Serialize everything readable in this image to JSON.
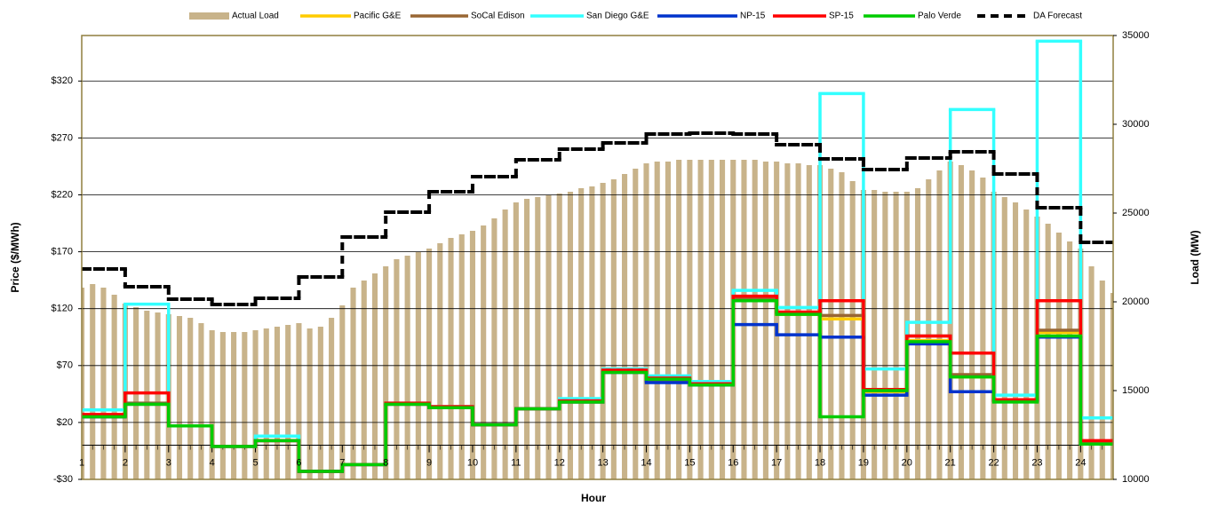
{
  "chart_data": {
    "type": "combo",
    "x_label": "Hour",
    "y_label": "Price ($/MWh)",
    "y2_label": "Load (MW)",
    "legend": "top",
    "grid": true,
    "xlim": [
      1,
      24.75
    ],
    "xticks": [
      1,
      2,
      3,
      4,
      5,
      6,
      7,
      8,
      9,
      10,
      11,
      12,
      13,
      14,
      15,
      16,
      17,
      18,
      19,
      20,
      21,
      22,
      23,
      24
    ],
    "ylim": [
      -30,
      360
    ],
    "yticks": [
      {
        "value": -30,
        "label": "-$30"
      },
      {
        "value": 20,
        "label": "$20"
      },
      {
        "value": 70,
        "label": "$70"
      },
      {
        "value": 120,
        "label": "$120"
      },
      {
        "value": 170,
        "label": "$170"
      },
      {
        "value": 220,
        "label": "$220"
      },
      {
        "value": 270,
        "label": "$270"
      },
      {
        "value": 320,
        "label": "$320"
      }
    ],
    "y2lim": [
      10000,
      35000
    ],
    "y2ticks": [
      10000,
      15000,
      20000,
      25000,
      30000,
      35000
    ],
    "x": [
      1,
      2,
      3,
      4,
      5,
      6,
      7,
      8,
      9,
      10,
      11,
      12,
      13,
      14,
      15,
      16,
      17,
      18,
      19,
      20,
      21,
      22,
      23,
      24
    ],
    "series": [
      {
        "name": "Actual Load",
        "type": "bar",
        "axis": "y2",
        "color": "#c8b38a",
        "x": [
          1,
          1.25,
          1.5,
          1.75,
          2,
          2.25,
          2.5,
          2.75,
          3,
          3.25,
          3.5,
          3.75,
          4,
          4.25,
          4.5,
          4.75,
          5,
          5.25,
          5.5,
          5.75,
          6,
          6.25,
          6.5,
          6.75,
          7,
          7.25,
          7.5,
          7.75,
          8,
          8.25,
          8.5,
          8.75,
          9,
          9.25,
          9.5,
          9.75,
          10,
          10.25,
          10.5,
          10.75,
          11,
          11.25,
          11.5,
          11.75,
          12,
          12.25,
          12.5,
          12.75,
          13,
          13.25,
          13.5,
          13.75,
          14,
          14.25,
          14.5,
          14.75,
          15,
          15.25,
          15.5,
          15.75,
          16,
          16.25,
          16.5,
          16.75,
          17,
          17.25,
          17.5,
          17.75,
          18,
          18.25,
          18.5,
          18.75,
          19,
          19.25,
          19.5,
          19.75,
          20,
          20.25,
          20.5,
          20.75,
          21,
          21.25,
          21.5,
          21.75,
          22,
          22.25,
          22.5,
          22.75,
          23,
          23.25,
          23.5,
          23.75,
          24,
          24.25,
          24.5,
          24.75
        ],
        "values": [
          20800,
          21000,
          20800,
          20400,
          19900,
          19700,
          19500,
          19400,
          19300,
          19200,
          19100,
          18800,
          18400,
          18300,
          18300,
          18300,
          18400,
          18500,
          18600,
          18700,
          18800,
          18500,
          18600,
          19100,
          19800,
          20800,
          21200,
          21600,
          22000,
          22400,
          22600,
          22800,
          23000,
          23300,
          23600,
          23800,
          24000,
          24300,
          24700,
          25200,
          25600,
          25800,
          25900,
          26000,
          26100,
          26200,
          26400,
          26500,
          26700,
          26900,
          27200,
          27500,
          27800,
          27900,
          27900,
          28000,
          28000,
          28000,
          28000,
          28000,
          28000,
          28000,
          28000,
          27900,
          27900,
          27800,
          27800,
          27700,
          27700,
          27500,
          27300,
          26800,
          26300,
          26300,
          26200,
          26200,
          26200,
          26400,
          26900,
          27400,
          27900,
          27700,
          27400,
          27000,
          26200,
          25900,
          25600,
          25200,
          24800,
          24400,
          23900,
          23400,
          23000,
          22000,
          21200,
          20500
        ]
      },
      {
        "name": "Pacific G&E",
        "type": "step",
        "color": "#ffcc00",
        "values": [
          25,
          36,
          17,
          -1,
          4,
          -23,
          -17,
          36,
          33,
          18,
          32,
          38,
          64,
          56,
          53,
          128,
          115,
          111,
          47,
          92,
          60,
          39,
          99,
          1
        ]
      },
      {
        "name": "SoCal Edison",
        "type": "step",
        "color": "#996633",
        "values": [
          25,
          37,
          17,
          -1,
          4,
          -23,
          -17,
          36,
          33,
          18,
          32,
          38,
          65,
          57,
          53,
          129,
          116,
          114,
          48,
          96,
          62,
          40,
          101,
          2
        ]
      },
      {
        "name": "San Diego G&E",
        "type": "step",
        "color": "#33ffff",
        "values": [
          31,
          124,
          17,
          -1,
          8,
          -23,
          -17,
          37,
          34,
          18,
          32,
          41,
          67,
          61,
          56,
          136,
          121,
          309,
          67,
          108,
          295,
          44,
          355,
          24
        ]
      },
      {
        "name": "NP-15",
        "type": "step",
        "color": "#0033cc",
        "values": [
          25,
          36,
          17,
          -1,
          4,
          -23,
          -17,
          36,
          33,
          18,
          32,
          38,
          64,
          55,
          53,
          106,
          97,
          95,
          44,
          89,
          47,
          39,
          95,
          1
        ]
      },
      {
        "name": "SP-15",
        "type": "step",
        "color": "#ff0000",
        "values": [
          27,
          46,
          17,
          -1,
          4,
          -23,
          -17,
          37,
          34,
          18,
          32,
          39,
          66,
          59,
          54,
          131,
          117,
          127,
          49,
          96,
          81,
          40,
          127,
          4
        ]
      },
      {
        "name": "Palo Verde",
        "type": "step",
        "color": "#00cc00",
        "values": [
          25,
          36,
          17,
          -1,
          4,
          -23,
          -17,
          36,
          33,
          18,
          32,
          38,
          64,
          58,
          53,
          127,
          115,
          25,
          48,
          91,
          60,
          38,
          96,
          1
        ]
      },
      {
        "name": "DA Forecast",
        "type": "step",
        "dashed": true,
        "axis": "y2",
        "color": "#000000",
        "values": [
          21850,
          20850,
          20150,
          19850,
          20200,
          21400,
          23650,
          25050,
          26200,
          27050,
          28000,
          28600,
          28950,
          29450,
          29500,
          29450,
          28850,
          28050,
          27450,
          28100,
          28450,
          27200,
          25300,
          23350
        ]
      }
    ]
  }
}
